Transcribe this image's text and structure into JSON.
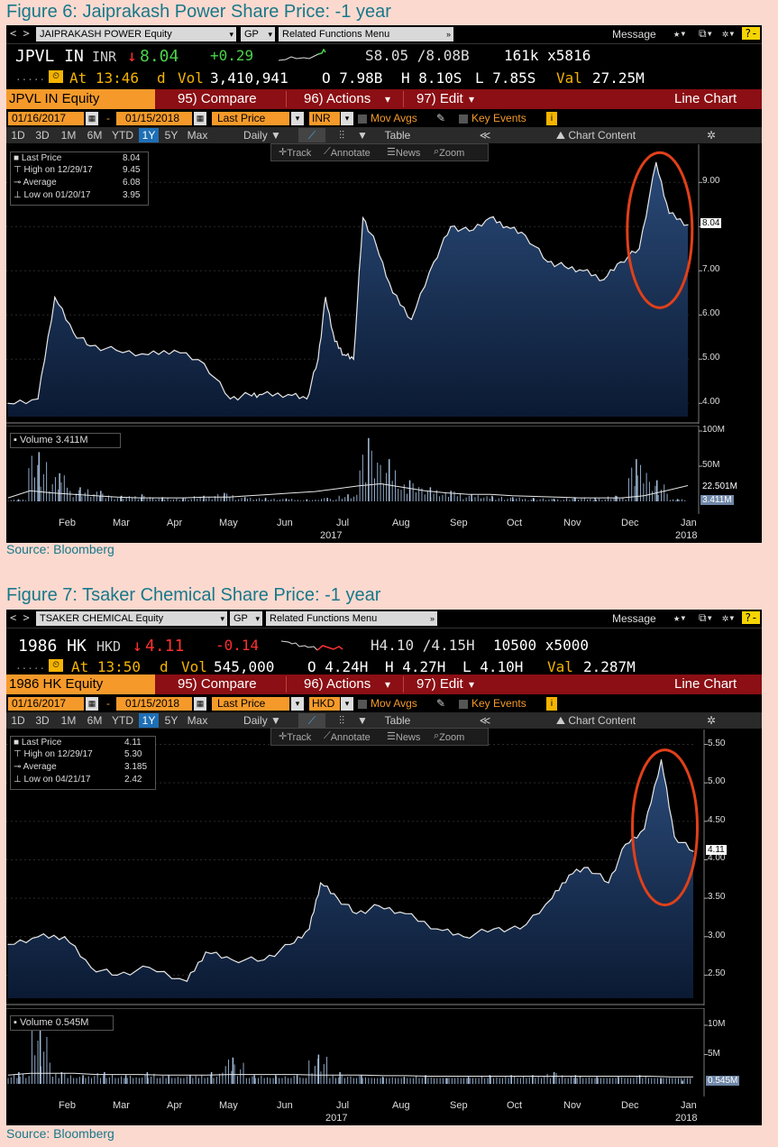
{
  "figures": [
    {
      "title": "Figure 6: Jaiprakash Power Share Price: -1 year",
      "source": "Source: Bloomberg",
      "security_dropdown": "JAIPRAKASH POWER Equity",
      "gp": "GP",
      "related": "Related Functions Menu",
      "message": "Message",
      "ticker": "JPVL IN",
      "currency": "INR",
      "last": "8.04",
      "change": "+0.29",
      "bid_ask": "S8.05 /8.08B",
      "size": "161k x5816",
      "time": "At 13:46",
      "d": "d",
      "vol_label": "Vol",
      "volume": "3,410,941",
      "open": "O 7.98B",
      "high": "H 8.10S",
      "low": "L 7.85S",
      "val_label": "Val",
      "value": "27.25M",
      "equity_box": "JPVL IN Equity",
      "compare": "95) Compare",
      "actions": "96) Actions",
      "edit": "97) Edit",
      "chart_type": "Line Chart",
      "date_from": "01/16/2017",
      "date_to": "01/15/2018",
      "field": "Last Price",
      "ccy_box": "INR",
      "mov_avgs": "Mov Avgs",
      "key_events": "Key Events",
      "ranges": [
        "1D",
        "3D",
        "1M",
        "6M",
        "YTD",
        "1Y",
        "5Y",
        "Max"
      ],
      "active_range": "1Y",
      "freq": "Daily",
      "table": "Table",
      "chart_content": "Chart Content",
      "tools": [
        "Track",
        "Annotate",
        "News",
        "Zoom"
      ],
      "legend": [
        {
          "label": "Last Price",
          "value": "8.04"
        },
        {
          "label": "High on 12/29/17",
          "value": "9.45"
        },
        {
          "label": "Average",
          "value": "6.08"
        },
        {
          "label": "Low on 01/20/17",
          "value": "3.95"
        }
      ],
      "price_tag": "8.04",
      "y_labels": [
        "9.00",
        "8.00",
        "7.00",
        "6.00",
        "5.00",
        "4.00"
      ],
      "volume_legend": "Volume 3.411M",
      "vol_y_labels": [
        "100M",
        "50M"
      ],
      "vol_avg_tag": "22.501M",
      "vol_last_tag": "3.411M",
      "months": [
        "Feb",
        "Mar",
        "Apr",
        "May",
        "Jun",
        "Jul",
        "Aug",
        "Sep",
        "Oct",
        "Nov",
        "Dec",
        "Jan"
      ],
      "year_labels": [
        "2017",
        "2018"
      ],
      "chart_data": {
        "type": "area",
        "title": "",
        "xlabel": "",
        "ylabel": "",
        "ylim": [
          3.7,
          9.7
        ],
        "x": [
          "01/16/17",
          "02/01/17",
          "02/10/17",
          "02/20/17",
          "03/01/17",
          "03/15/17",
          "04/01/17",
          "04/15/17",
          "05/01/17",
          "05/15/17",
          "05/25/17",
          "06/01/17",
          "06/15/17",
          "06/25/17",
          "07/01/17",
          "07/05/17",
          "07/10/17",
          "07/15/17",
          "07/20/17",
          "07/25/17",
          "08/01/17",
          "08/10/17",
          "08/20/17",
          "09/01/17",
          "09/10/17",
          "09/20/17",
          "10/01/17",
          "10/10/17",
          "10/20/17",
          "11/01/17",
          "11/10/17",
          "11/20/17",
          "12/01/17",
          "12/10/17",
          "12/20/17",
          "12/29/17",
          "01/05/18",
          "01/15/18"
        ],
        "series": [
          {
            "name": "Last Price",
            "values": [
              4.0,
              4.1,
              6.4,
              5.6,
              5.3,
              5.2,
              5.1,
              5.2,
              4.9,
              4.1,
              4.2,
              4.2,
              4.2,
              4.1,
              5.0,
              6.4,
              5.4,
              5.1,
              5.0,
              8.2,
              7.6,
              6.5,
              5.9,
              7.2,
              8.0,
              7.9,
              8.2,
              8.0,
              7.8,
              7.2,
              7.1,
              7.0,
              6.8,
              7.2,
              7.5,
              9.45,
              8.3,
              8.04
            ]
          }
        ]
      },
      "volume_data": {
        "unit": "M",
        "ylim": [
          0,
          100
        ],
        "avg_values": [
          5,
          15,
          12,
          10,
          8,
          6,
          5,
          5,
          5,
          6,
          6,
          8,
          10,
          12,
          14,
          18,
          22,
          25,
          20,
          15,
          12,
          10,
          10,
          8,
          7,
          6,
          5,
          5,
          5,
          8,
          15,
          22.5
        ],
        "bar_values": [
          3,
          70,
          40,
          20,
          15,
          8,
          10,
          6,
          5,
          8,
          12,
          6,
          5,
          4,
          3,
          5,
          10,
          90,
          60,
          30,
          20,
          15,
          10,
          8,
          6,
          5,
          4,
          6,
          5,
          8,
          60,
          30,
          3.4
        ]
      }
    },
    {
      "title": "Figure 7: Tsaker Chemical Share Price: -1 year",
      "source": "Source: Bloomberg",
      "security_dropdown": "TSAKER CHEMICAL Equity",
      "gp": "GP",
      "related": "Related Functions Menu",
      "message": "Message",
      "ticker": "1986 HK",
      "currency": "HKD",
      "last": "4.11",
      "change": "-0.14",
      "bid_ask": "H4.10 /4.15H",
      "size": "10500 x5000",
      "time": "At 13:50",
      "d": "d",
      "vol_label": "Vol",
      "volume": "545,000",
      "open": "O 4.24H",
      "high": "H 4.27H",
      "low": "L 4.10H",
      "val_label": "Val",
      "value": "2.287M",
      "equity_box": "1986 HK Equity",
      "compare": "95) Compare",
      "actions": "96) Actions",
      "edit": "97) Edit",
      "chart_type": "Line Chart",
      "date_from": "01/16/2017",
      "date_to": "01/15/2018",
      "field": "Last Price",
      "ccy_box": "HKD",
      "mov_avgs": "Mov Avgs",
      "key_events": "Key Events",
      "ranges": [
        "1D",
        "3D",
        "1M",
        "6M",
        "YTD",
        "1Y",
        "5Y",
        "Max"
      ],
      "active_range": "1Y",
      "freq": "Daily",
      "table": "Table",
      "chart_content": "Chart Content",
      "tools": [
        "Track",
        "Annotate",
        "News",
        "Zoom"
      ],
      "legend": [
        {
          "label": "Last Price",
          "value": "4.11"
        },
        {
          "label": "High on 12/29/17",
          "value": "5.30"
        },
        {
          "label": "Average",
          "value": "3.185"
        },
        {
          "label": "Low on 04/21/17",
          "value": "2.42"
        }
      ],
      "price_tag": "4.11",
      "y_labels": [
        "5.50",
        "5.00",
        "4.50",
        "4.00",
        "3.50",
        "3.00",
        "2.50"
      ],
      "volume_legend": "Volume 0.545M",
      "vol_y_labels": [
        "10M",
        "5M"
      ],
      "vol_last_tag": "0.545M",
      "months": [
        "Feb",
        "Mar",
        "Apr",
        "May",
        "Jun",
        "Jul",
        "Aug",
        "Sep",
        "Oct",
        "Nov",
        "Dec",
        "Jan"
      ],
      "year_labels": [
        "2017",
        "2018"
      ],
      "chart_data": {
        "type": "area",
        "title": "",
        "xlabel": "",
        "ylabel": "",
        "ylim": [
          2.2,
          5.6
        ],
        "x": [
          "01/16/17",
          "02/01/17",
          "02/15/17",
          "03/01/17",
          "03/15/17",
          "04/01/17",
          "04/21/17",
          "05/01/17",
          "05/15/17",
          "06/01/17",
          "06/15/17",
          "06/25/17",
          "07/01/17",
          "07/10/17",
          "07/20/17",
          "08/01/17",
          "08/15/17",
          "09/01/17",
          "09/15/17",
          "10/01/17",
          "10/15/17",
          "11/01/17",
          "11/10/17",
          "11/20/17",
          "12/01/17",
          "12/10/17",
          "12/20/17",
          "12/29/17",
          "01/05/18",
          "01/15/18"
        ],
        "series": [
          {
            "name": "Last Price",
            "values": [
              2.9,
              3.0,
              3.0,
              2.6,
              2.5,
              2.6,
              2.42,
              2.8,
              2.7,
              2.7,
              2.9,
              3.1,
              3.7,
              3.5,
              3.3,
              3.4,
              3.3,
              3.1,
              3.0,
              3.1,
              3.1,
              3.5,
              3.8,
              3.9,
              3.7,
              4.2,
              4.4,
              5.3,
              4.3,
              4.11
            ]
          }
        ]
      },
      "volume_data": {
        "unit": "M",
        "ylim": [
          0,
          12
        ],
        "bar_values": [
          2,
          10,
          2,
          1.5,
          2,
          1.5,
          2,
          1.5,
          1.5,
          2,
          4.5,
          1.5,
          1.5,
          1.5,
          5,
          2,
          1.5,
          1.2,
          1.2,
          1.5,
          1,
          1.2,
          1.5,
          1.5,
          1.5,
          2,
          1.5,
          1.2,
          1.2,
          1.5,
          1,
          0.545
        ],
        "avg_values": [
          1.5,
          1.8,
          1.8,
          1.8,
          1.6,
          1.6,
          1.6,
          1.5,
          1.5,
          1.5,
          1.6,
          1.6,
          1.6,
          1.6,
          1.5,
          1.5,
          1.5,
          1.4,
          1.4,
          1.3,
          1.3,
          1.3,
          1.3,
          1.3,
          1.3,
          1.3,
          1.3,
          1.3,
          1.3,
          1.3,
          1.2,
          1.2
        ]
      }
    }
  ]
}
